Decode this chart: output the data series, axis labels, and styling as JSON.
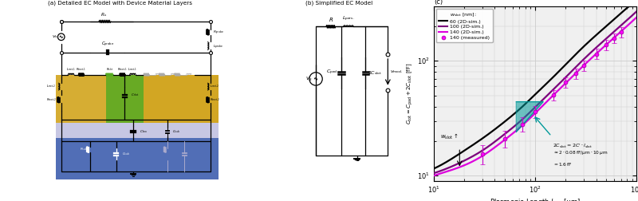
{
  "title_a": "(a) Detailed EC Model with Device Material Layers",
  "title_b": "(b) Simplified EC Model",
  "title_c": "(c)",
  "xlabel": "Plasmonic Length $l_{\\mathrm{slot}}$ [μm]",
  "ylabel": "$C_{\\mathrm{tot}} = C_{\\mathrm{pad}} + 2C_{\\mathrm{slot}}$ [fF]",
  "xlim": [
    10,
    1000
  ],
  "ylim": [
    9,
    300
  ],
  "line_60_x": [
    10,
    15,
    20,
    30,
    50,
    75,
    100,
    150,
    200,
    300,
    500,
    700,
    1000
  ],
  "line_60_y": [
    11.5,
    14.0,
    16.5,
    21.0,
    29.5,
    40.0,
    51.0,
    72.0,
    93.0,
    133.0,
    200.0,
    260.0,
    340.0
  ],
  "line_100_x": [
    10,
    15,
    20,
    30,
    50,
    75,
    100,
    150,
    200,
    300,
    500,
    700,
    1000
  ],
  "line_100_y": [
    10.5,
    12.0,
    13.5,
    16.5,
    23.0,
    31.0,
    39.5,
    56.0,
    72.0,
    103.0,
    156.0,
    203.0,
    270.0
  ],
  "line_140_x": [
    10,
    15,
    20,
    30,
    50,
    75,
    100,
    150,
    200,
    300,
    500,
    700,
    1000
  ],
  "line_140_y": [
    10.0,
    11.2,
    12.3,
    14.8,
    20.5,
    27.5,
    35.0,
    50.0,
    64.0,
    91.0,
    138.0,
    180.0,
    240.0
  ],
  "measured_x": [
    30,
    50,
    75,
    100,
    150,
    200,
    250,
    300,
    400,
    500,
    600,
    700
  ],
  "measured_y": [
    15.5,
    21.0,
    28.0,
    36.0,
    50.5,
    65.0,
    78.0,
    91.0,
    115.0,
    138.0,
    158.0,
    178.0
  ],
  "measured_yerr": [
    3.0,
    3.5,
    4.0,
    4.5,
    5.5,
    7.0,
    8.0,
    9.5,
    12.0,
    14.0,
    16.0,
    18.0
  ],
  "color_60": "#000000",
  "color_100": "#7B007B",
  "color_140": "#DD00DD",
  "color_measured": "#FF00FF",
  "grid_color": "#cccccc",
  "background_color": "#f0f0f0",
  "layer_gold": "#cc9900",
  "layer_green": "#55aa22",
  "layer_purple": "#9999cc",
  "layer_blue": "#3355aa"
}
